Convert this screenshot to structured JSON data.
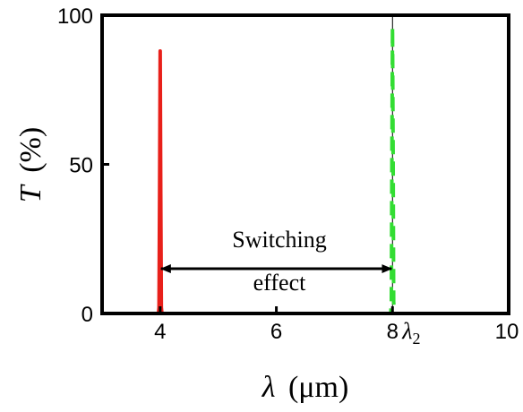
{
  "chart_data": {
    "type": "line",
    "xlabel_symbol": "λ",
    "xlabel_unit": "(μm)",
    "ylabel_symbol": "T",
    "ylabel_unit": "(%)",
    "xlim": [
      3,
      10
    ],
    "ylim": [
      0,
      100
    ],
    "x_ticks": [
      {
        "value": 4,
        "label": "4"
      },
      {
        "value": 6,
        "label": "6"
      },
      {
        "value": 8,
        "label": "8"
      },
      {
        "value": 10,
        "label": "10"
      }
    ],
    "y_ticks": [
      {
        "value": 0,
        "label": "0"
      },
      {
        "value": 50,
        "label": "50"
      },
      {
        "value": 100,
        "label": "100"
      }
    ],
    "series": [
      {
        "color": "#e8201a",
        "dash": "none",
        "points": [
          [
            3.0,
            0.0
          ],
          [
            3.97,
            0.0
          ],
          [
            3.98,
            2.0
          ],
          [
            3.99,
            40.0
          ],
          [
            4.0,
            88.0
          ],
          [
            4.01,
            40.0
          ],
          [
            4.02,
            2.0
          ],
          [
            4.03,
            0.0
          ],
          [
            10.0,
            0.0
          ]
        ]
      },
      {
        "color": "#e8201a",
        "dash": "16,8",
        "points": [
          [
            3.0,
            0.0
          ],
          [
            10.0,
            0.0
          ]
        ]
      },
      {
        "color": "#000000",
        "dash": "none",
        "width": 1,
        "points": [
          [
            8.0,
            0.0
          ],
          [
            8.0,
            100.0
          ]
        ]
      },
      {
        "color": "#33dd33",
        "dash": "16,8",
        "points": [
          [
            3.0,
            0.0
          ],
          [
            7.97,
            0.0
          ],
          [
            7.98,
            4.0
          ],
          [
            7.99,
            55.0
          ],
          [
            8.0,
            96.0
          ],
          [
            8.01,
            55.0
          ],
          [
            8.02,
            4.0
          ],
          [
            8.03,
            0.0
          ],
          [
            10.0,
            0.0
          ]
        ]
      }
    ],
    "annotations": {
      "switching_text_line1": "Switching",
      "switching_text_line2": "effect",
      "arrow_from_x": 4,
      "arrow_to_x": 8,
      "arrow_y": 15,
      "lambda2_symbol": "λ",
      "lambda2_subscript": "2"
    }
  }
}
